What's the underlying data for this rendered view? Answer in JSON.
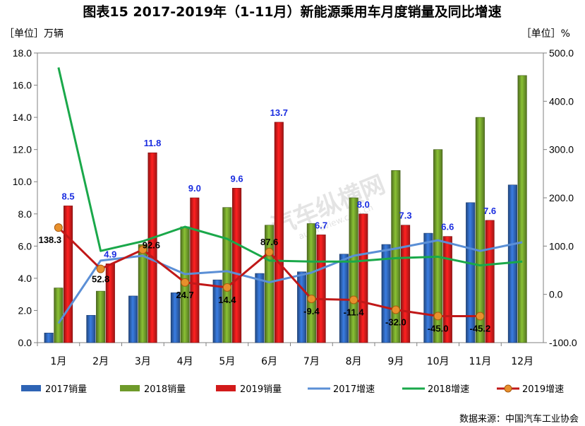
{
  "title": "图表15    2017-2019年（1-11月）新能源乘用车月度销量及同比增速",
  "left_unit": "［单位］万辆",
  "right_unit": "［单位］%",
  "source": "数据来源：中国汽车工业协会",
  "watermark": "汽车纵横网",
  "watermark_sub": "autoreview.com.cn",
  "chart_data": {
    "type": "bar",
    "categories": [
      "1月",
      "2月",
      "3月",
      "4月",
      "5月",
      "6月",
      "7月",
      "8月",
      "9月",
      "10月",
      "11月",
      "12月"
    ],
    "left_axis": {
      "min": 0,
      "max": 18,
      "step": 2,
      "tick_labels": [
        "0.0",
        "2.0",
        "4.0",
        "6.0",
        "8.0",
        "10.0",
        "12.0",
        "14.0",
        "16.0",
        "18.0"
      ]
    },
    "right_axis": {
      "min": -100,
      "max": 500,
      "step": 100,
      "tick_labels": [
        "-100.0",
        "0.0",
        "100.0",
        "200.0",
        "300.0",
        "400.0",
        "500.0"
      ]
    },
    "bar_series": [
      {
        "name": "2017销量",
        "color": "#2e64b5",
        "values": [
          0.6,
          1.7,
          2.9,
          3.1,
          3.9,
          4.3,
          4.4,
          5.5,
          6.1,
          6.8,
          8.7,
          9.8
        ]
      },
      {
        "name": "2018销量",
        "color": "#6e9a2a",
        "values": [
          3.4,
          3.2,
          6.1,
          7.2,
          8.4,
          7.3,
          7.4,
          9.0,
          10.7,
          12.0,
          14.0,
          16.6
        ]
      },
      {
        "name": "2019销量",
        "color": "#d21a1a",
        "values": [
          8.5,
          4.9,
          11.8,
          9.0,
          9.6,
          13.7,
          6.7,
          8.0,
          7.3,
          6.6,
          7.6,
          null
        ],
        "labels": [
          "8.5",
          "4.9",
          "11.8",
          "9.0",
          "9.6",
          "13.7",
          "6.7",
          "8.0",
          "7.3",
          "6.6",
          "7.6",
          ""
        ]
      }
    ],
    "line_series": [
      {
        "name": "2017增速",
        "color": "#5b8fd6",
        "values": [
          -60,
          70,
          80,
          42,
          48,
          25,
          45,
          80,
          95,
          112,
          90,
          108
        ]
      },
      {
        "name": "2018增速",
        "color": "#1aa84a",
        "values": [
          470,
          90,
          110,
          140,
          115,
          70,
          68,
          68,
          75,
          78,
          60,
          68
        ]
      },
      {
        "name": "2019增速",
        "color": "#c01818",
        "values": [
          138.3,
          52.8,
          92.6,
          24.7,
          14.4,
          87.6,
          -9.4,
          -11.4,
          -32.0,
          -45.0,
          -45.2,
          null
        ],
        "labels": [
          "138.3",
          "52.8",
          "92.6",
          "24.7",
          "14.4",
          "87.6",
          "-9.4",
          "-11.4",
          "-32.0",
          "-45.0",
          "-45.2",
          ""
        ]
      }
    ],
    "legend": [
      "2017销量",
      "2018销量",
      "2019销量",
      "2017增速",
      "2018增速",
      "2019增速"
    ],
    "legend_position": "bottom",
    "grid": false
  }
}
